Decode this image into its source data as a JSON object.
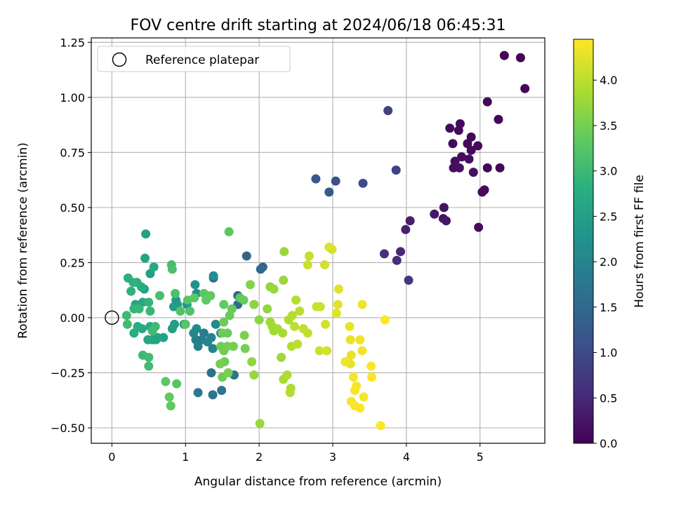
{
  "chart_data": {
    "type": "scatter",
    "title": "FOV centre drift starting at 2024/06/18 06:45:31",
    "xlabel": "Angular distance from reference (arcmin)",
    "ylabel": "Rotation from reference (arcmin)",
    "xlim": [
      -0.28,
      5.88
    ],
    "ylim": [
      -0.57,
      1.27
    ],
    "xticks": [
      0,
      1,
      2,
      3,
      4,
      5
    ],
    "yticks": [
      -0.5,
      -0.25,
      0.0,
      0.25,
      0.5,
      0.75,
      1.0,
      1.25
    ],
    "xtick_labels": [
      "0",
      "1",
      "2",
      "3",
      "4",
      "5"
    ],
    "ytick_labels": [
      "−0.50",
      "−0.25",
      "0.00",
      "0.25",
      "0.50",
      "0.75",
      "1.00",
      "1.25"
    ],
    "grid": true,
    "colormap": "viridis",
    "colorbar": {
      "label": "Hours from first FF file",
      "range": [
        0,
        4.45
      ],
      "ticks": [
        0,
        0.5,
        1.0,
        1.5,
        2.0,
        2.5,
        3.0,
        3.5,
        4.0
      ],
      "tick_labels": [
        "0.0",
        "0.5",
        "1.0",
        "1.5",
        "2.0",
        "2.5",
        "3.0",
        "3.5",
        "4.0"
      ]
    },
    "legend": {
      "placement": "top-left",
      "entries": [
        {
          "label": "Reference platepar",
          "marker": "open-circle"
        }
      ]
    },
    "reference_point": {
      "x": 0,
      "y": 0
    },
    "series_columns": [
      "x",
      "y",
      "hours"
    ],
    "points": [
      [
        5.33,
        1.19,
        0.02
      ],
      [
        5.55,
        1.18,
        0.03
      ],
      [
        5.61,
        1.04,
        0.04
      ],
      [
        5.25,
        0.9,
        0.06
      ],
      [
        5.1,
        0.98,
        0.08
      ],
      [
        4.88,
        0.82,
        0.08
      ],
      [
        4.97,
        0.78,
        0.1
      ],
      [
        4.83,
        0.79,
        0.1
      ],
      [
        4.73,
        0.88,
        0.1
      ],
      [
        4.71,
        0.85,
        0.12
      ],
      [
        4.63,
        0.79,
        0.12
      ],
      [
        4.59,
        0.86,
        0.14
      ],
      [
        4.75,
        0.73,
        0.14
      ],
      [
        4.85,
        0.72,
        0.16
      ],
      [
        4.88,
        0.76,
        0.12
      ],
      [
        4.66,
        0.71,
        0.18
      ],
      [
        4.72,
        0.68,
        0.2
      ],
      [
        4.64,
        0.68,
        0.16
      ],
      [
        4.91,
        0.66,
        0.2
      ],
      [
        5.1,
        0.68,
        0.08
      ],
      [
        5.27,
        0.68,
        0.08
      ],
      [
        5.06,
        0.58,
        0.1
      ],
      [
        5.03,
        0.57,
        0.12
      ],
      [
        4.98,
        0.41,
        0.14
      ],
      [
        4.51,
        0.5,
        0.22
      ],
      [
        4.5,
        0.45,
        0.24
      ],
      [
        4.54,
        0.44,
        0.26
      ],
      [
        4.38,
        0.47,
        0.28
      ],
      [
        4.05,
        0.44,
        0.38
      ],
      [
        3.99,
        0.4,
        0.4
      ],
      [
        3.92,
        0.3,
        0.5
      ],
      [
        3.87,
        0.26,
        0.55
      ],
      [
        3.7,
        0.29,
        0.6
      ],
      [
        4.03,
        0.17,
        0.7
      ],
      [
        3.86,
        0.67,
        0.9
      ],
      [
        3.75,
        0.94,
        0.85
      ],
      [
        3.41,
        0.61,
        1.0
      ],
      [
        3.04,
        0.62,
        1.1
      ],
      [
        2.77,
        0.63,
        1.2
      ],
      [
        2.95,
        0.57,
        1.25
      ],
      [
        1.83,
        0.28,
        1.45
      ],
      [
        2.05,
        0.23,
        1.45
      ],
      [
        2.02,
        0.22,
        1.5
      ],
      [
        1.71,
        0.1,
        1.5
      ],
      [
        1.71,
        0.06,
        1.55
      ],
      [
        1.38,
        0.18,
        1.6
      ],
      [
        1.35,
        -0.25,
        1.65
      ],
      [
        1.37,
        -0.35,
        1.7
      ],
      [
        1.66,
        -0.26,
        1.7
      ],
      [
        1.49,
        -0.33,
        1.75
      ],
      [
        1.17,
        -0.34,
        1.8
      ],
      [
        1.48,
        -0.07,
        1.8
      ],
      [
        1.25,
        -0.07,
        1.85
      ],
      [
        1.22,
        -0.1,
        1.85
      ],
      [
        1.14,
        -0.1,
        1.9
      ],
      [
        1.17,
        -0.13,
        1.9
      ],
      [
        1.35,
        -0.09,
        1.95
      ],
      [
        1.37,
        -0.14,
        2.0
      ],
      [
        1.3,
        -0.11,
        2.0
      ],
      [
        1.11,
        -0.07,
        2.05
      ],
      [
        1.15,
        -0.05,
        2.1
      ],
      [
        1.41,
        -0.03,
        2.1
      ],
      [
        1.38,
        0.19,
        2.2
      ],
      [
        1.15,
        0.11,
        2.2
      ],
      [
        1.13,
        0.15,
        2.25
      ],
      [
        1.02,
        0.06,
        2.3
      ],
      [
        0.98,
        -0.03,
        2.3
      ],
      [
        0.87,
        0.08,
        2.35
      ],
      [
        0.89,
        0.06,
        2.4
      ],
      [
        0.84,
        0.05,
        2.45
      ],
      [
        0.85,
        -0.03,
        2.45
      ],
      [
        0.82,
        -0.05,
        2.5
      ],
      [
        0.7,
        -0.09,
        2.55
      ],
      [
        0.62,
        -0.09,
        2.55
      ],
      [
        0.6,
        -0.1,
        2.6
      ],
      [
        0.55,
        -0.1,
        2.6
      ],
      [
        0.49,
        -0.1,
        2.65
      ],
      [
        0.52,
        -0.04,
        2.7
      ],
      [
        0.41,
        -0.05,
        2.7
      ],
      [
        0.35,
        -0.04,
        2.75
      ],
      [
        0.3,
        -0.07,
        2.75
      ],
      [
        0.42,
        0.07,
        2.65
      ],
      [
        0.32,
        0.06,
        2.6
      ],
      [
        0.44,
        0.13,
        2.55
      ],
      [
        0.52,
        0.2,
        2.5
      ],
      [
        0.46,
        0.38,
        2.5
      ],
      [
        0.45,
        0.27,
        2.6
      ],
      [
        0.57,
        0.23,
        2.7
      ],
      [
        0.4,
        0.14,
        2.75
      ],
      [
        0.34,
        0.16,
        2.8
      ],
      [
        0.29,
        0.16,
        2.85
      ],
      [
        0.22,
        0.18,
        2.8
      ],
      [
        0.26,
        0.12,
        2.85
      ],
      [
        0.3,
        0.04,
        2.9
      ],
      [
        0.37,
        0.04,
        2.95
      ],
      [
        0.5,
        0.07,
        2.9
      ],
      [
        0.52,
        0.03,
        2.95
      ],
      [
        0.59,
        -0.04,
        3.0
      ],
      [
        0.55,
        -0.06,
        3.05
      ],
      [
        0.42,
        -0.17,
        3.0
      ],
      [
        0.5,
        -0.18,
        3.05
      ],
      [
        0.5,
        -0.22,
        3.05
      ],
      [
        0.2,
        0.01,
        3.0
      ],
      [
        0.21,
        -0.03,
        3.05
      ],
      [
        0.65,
        0.1,
        3.1
      ],
      [
        0.81,
        0.24,
        3.1
      ],
      [
        0.82,
        0.22,
        3.15
      ],
      [
        0.86,
        0.11,
        3.15
      ],
      [
        0.93,
        0.03,
        3.2
      ],
      [
        1.06,
        0.03,
        3.2
      ],
      [
        1.0,
        -0.03,
        3.25
      ],
      [
        1.03,
        0.08,
        3.25
      ],
      [
        1.12,
        0.09,
        3.3
      ],
      [
        1.25,
        0.11,
        3.3
      ],
      [
        1.28,
        0.08,
        3.35
      ],
      [
        1.34,
        0.1,
        3.35
      ],
      [
        1.59,
        0.39,
        3.3
      ],
      [
        1.74,
        0.09,
        3.35
      ],
      [
        1.79,
        0.08,
        3.4
      ],
      [
        1.52,
        0.06,
        3.35
      ],
      [
        1.63,
        0.04,
        3.4
      ],
      [
        1.6,
        0.01,
        3.4
      ],
      [
        1.52,
        -0.02,
        3.45
      ],
      [
        1.5,
        -0.07,
        3.45
      ],
      [
        1.57,
        -0.07,
        3.4
      ],
      [
        1.48,
        -0.13,
        3.45
      ],
      [
        1.52,
        -0.15,
        3.45
      ],
      [
        1.57,
        -0.13,
        3.5
      ],
      [
        1.65,
        -0.13,
        3.5
      ],
      [
        1.81,
        -0.14,
        3.5
      ],
      [
        1.53,
        -0.2,
        3.45
      ],
      [
        1.47,
        -0.21,
        3.5
      ],
      [
        1.5,
        -0.27,
        3.45
      ],
      [
        1.58,
        -0.25,
        3.5
      ],
      [
        1.8,
        -0.08,
        3.55
      ],
      [
        0.88,
        -0.3,
        3.25
      ],
      [
        0.73,
        -0.29,
        3.3
      ],
      [
        0.78,
        -0.36,
        3.35
      ],
      [
        0.8,
        -0.4,
        3.35
      ],
      [
        1.88,
        0.15,
        3.6
      ],
      [
        1.93,
        0.06,
        3.65
      ],
      [
        2.0,
        -0.01,
        3.65
      ],
      [
        2.11,
        0.04,
        3.7
      ],
      [
        2.15,
        0.14,
        3.7
      ],
      [
        2.2,
        0.13,
        3.75
      ],
      [
        2.34,
        0.3,
        3.75
      ],
      [
        2.33,
        0.17,
        3.75
      ],
      [
        2.15,
        -0.02,
        3.8
      ],
      [
        2.18,
        -0.04,
        3.8
      ],
      [
        2.2,
        -0.06,
        3.8
      ],
      [
        2.25,
        -0.05,
        3.85
      ],
      [
        2.32,
        -0.07,
        3.85
      ],
      [
        1.9,
        -0.2,
        3.7
      ],
      [
        1.93,
        -0.26,
        3.75
      ],
      [
        2.3,
        -0.18,
        3.8
      ],
      [
        2.33,
        -0.28,
        3.85
      ],
      [
        2.38,
        -0.26,
        3.9
      ],
      [
        2.43,
        -0.32,
        3.9
      ],
      [
        2.42,
        -0.34,
        3.95
      ],
      [
        2.01,
        -0.48,
        3.75
      ],
      [
        2.4,
        -0.01,
        3.9
      ],
      [
        2.45,
        0.01,
        3.95
      ],
      [
        2.5,
        0.08,
        3.95
      ],
      [
        2.48,
        -0.04,
        4.0
      ],
      [
        2.55,
        0.03,
        4.0
      ],
      [
        2.6,
        -0.05,
        4.05
      ],
      [
        2.66,
        -0.07,
        4.05
      ],
      [
        2.44,
        -0.13,
        3.95
      ],
      [
        2.52,
        -0.12,
        4.0
      ],
      [
        2.68,
        0.28,
        4.05
      ],
      [
        2.66,
        0.24,
        4.1
      ],
      [
        2.78,
        0.05,
        4.1
      ],
      [
        2.83,
        0.05,
        4.1
      ],
      [
        2.82,
        -0.15,
        4.1
      ],
      [
        2.92,
        -0.15,
        4.15
      ],
      [
        2.9,
        -0.03,
        4.15
      ],
      [
        2.89,
        0.24,
        4.15
      ],
      [
        2.95,
        0.32,
        4.2
      ],
      [
        2.99,
        0.31,
        4.2
      ],
      [
        3.08,
        0.13,
        4.25
      ],
      [
        3.07,
        0.06,
        4.25
      ],
      [
        3.05,
        0.02,
        4.25
      ],
      [
        3.23,
        -0.04,
        4.3
      ],
      [
        3.24,
        -0.1,
        4.3
      ],
      [
        3.25,
        -0.17,
        4.3
      ],
      [
        3.24,
        -0.21,
        4.3
      ],
      [
        3.17,
        -0.2,
        4.35
      ],
      [
        3.37,
        -0.1,
        4.35
      ],
      [
        3.4,
        -0.15,
        4.35
      ],
      [
        3.4,
        0.06,
        4.35
      ],
      [
        3.28,
        -0.27,
        4.4
      ],
      [
        3.32,
        -0.31,
        4.4
      ],
      [
        3.3,
        -0.33,
        4.4
      ],
      [
        3.42,
        -0.36,
        4.4
      ],
      [
        3.25,
        -0.38,
        4.4
      ],
      [
        3.3,
        -0.4,
        4.42
      ],
      [
        3.37,
        -0.41,
        4.42
      ],
      [
        3.52,
        -0.22,
        4.42
      ],
      [
        3.53,
        -0.27,
        4.42
      ],
      [
        3.71,
        -0.01,
        4.43
      ],
      [
        3.65,
        -0.49,
        4.44
      ]
    ]
  }
}
